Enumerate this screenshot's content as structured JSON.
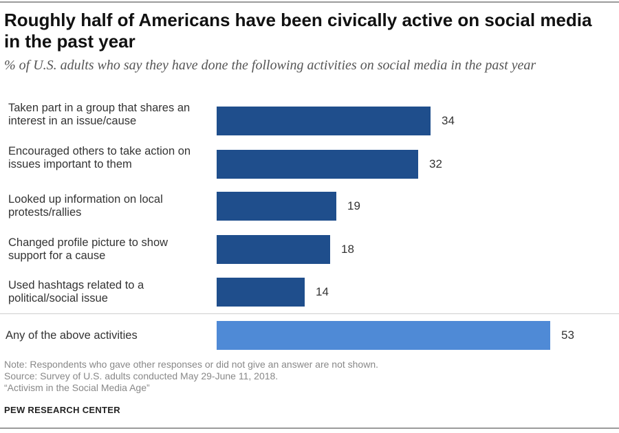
{
  "title": "Roughly half of Americans have been civically active on social media in the past year",
  "subtitle": "% of U.S. adults who say they have done the following activities on social media in the past year",
  "chart_data": {
    "type": "bar",
    "orientation": "horizontal",
    "categories": [
      "Taken part in a group that shares an interest in an issue/cause",
      "Encouraged others to take action on issues important to them",
      "Looked up information on local protests/rallies",
      "Changed profile picture to show support for a cause",
      "Used hashtags related to a political/social issue",
      "Any of the above activities"
    ],
    "values": [
      34,
      32,
      19,
      18,
      14,
      53
    ],
    "unit": "%",
    "colors": [
      "#1f4e8c",
      "#1f4e8c",
      "#1f4e8c",
      "#1f4e8c",
      "#1f4e8c",
      "#4f8ad6"
    ],
    "xlim": [
      0,
      53
    ]
  },
  "notes": {
    "note": "Note: Respondents who gave other responses or did not give an answer are not shown.",
    "source": "Source: Survey of U.S. adults conducted May 29-June 11, 2018.",
    "report": "“Activism in the Social Media Age”"
  },
  "brand": "PEW RESEARCH CENTER"
}
